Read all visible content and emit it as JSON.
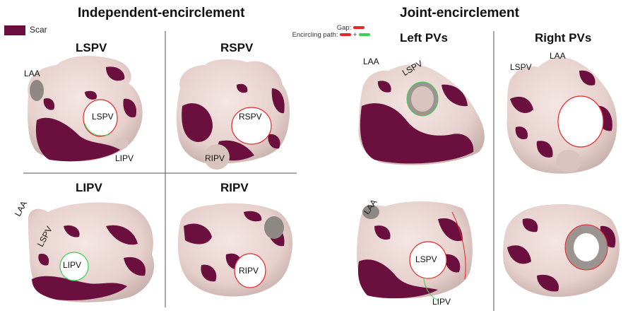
{
  "sections": {
    "independent": "Independent-encirclement",
    "joint": "Joint-encirclement"
  },
  "legend": {
    "scar_label": "Scar",
    "scar_color": "#6b0f3f",
    "gap_label": "Gap:",
    "path_label": "Encircling  path:",
    "plus": "+",
    "gap_color": "#e8262a",
    "path_color_1": "#e8262a",
    "path_color_2": "#39d353"
  },
  "panels": {
    "lspv": {
      "title": "LSPV",
      "labels": [
        "LAA",
        "LSPV",
        "LIPV"
      ]
    },
    "rspv": {
      "title": "RSPV",
      "labels": [
        "RSPV",
        "RIPV"
      ]
    },
    "lipv": {
      "title": "LIPV",
      "labels": [
        "LAA",
        "LSPV",
        "LIPV"
      ]
    },
    "ripv": {
      "title": "RIPV",
      "labels": [
        "RIPV"
      ]
    },
    "left_pvs": {
      "title": "Left PVs",
      "labels_top": [
        "LAA",
        "LSPV"
      ],
      "labels_bottom": [
        "LAA",
        "LSPV",
        "LIPV"
      ]
    },
    "right_pvs": {
      "title": "Right PVs",
      "labels_top": [
        "LSPV",
        "LAA"
      ]
    }
  },
  "colors": {
    "tissue": "#ecd9d6",
    "scar": "#6b0f3f",
    "divider": "#555555"
  }
}
